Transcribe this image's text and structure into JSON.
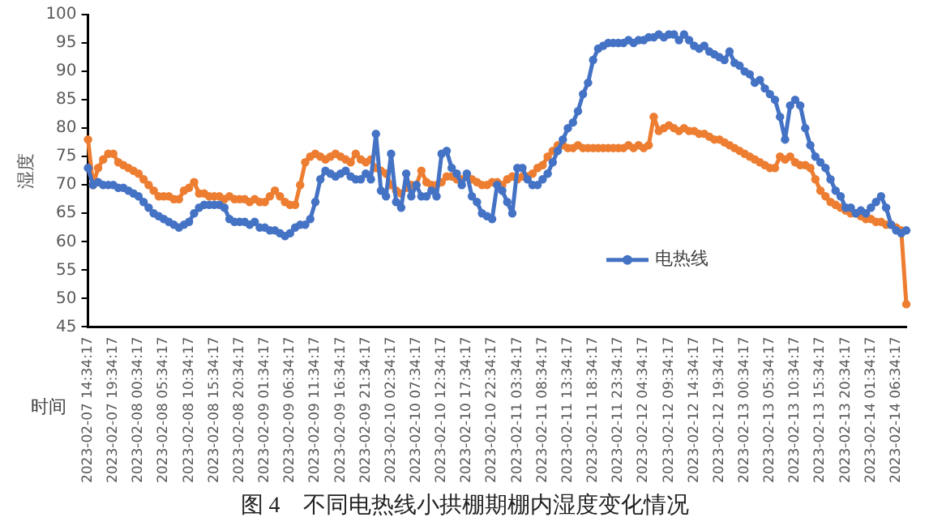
{
  "chart_data": {
    "type": "line",
    "title": "图 4　不同电热线小拱棚期棚内湿度变化情况",
    "xlabel": "时间",
    "ylabel": "湿度",
    "categories": [
      "2023-02-07 14:34:17",
      null,
      null,
      null,
      null,
      "2023-02-07 19:34:17",
      null,
      null,
      null,
      null,
      "2023-02-08 00:34:17",
      null,
      null,
      null,
      null,
      "2023-02-08 05:34:17",
      null,
      null,
      null,
      null,
      "2023-02-08 10:34:17",
      null,
      null,
      null,
      null,
      "2023-02-08 15:34:17",
      null,
      null,
      null,
      null,
      "2023-02-08 20:34:17",
      null,
      null,
      null,
      null,
      "2023-02-09 01:34:17",
      null,
      null,
      null,
      null,
      "2023-02-09 06:34:17",
      null,
      null,
      null,
      null,
      "2023-02-09 11:34:17",
      null,
      null,
      null,
      null,
      "2023-02-09 16:34:17",
      null,
      null,
      null,
      null,
      "2023-02-09 21:34:17",
      null,
      null,
      null,
      null,
      "2023-02-10 02:34:17",
      null,
      null,
      null,
      null,
      "2023-02-10 07:34:17",
      null,
      null,
      null,
      null,
      "2023-02-10 12:34:17",
      null,
      null,
      null,
      null,
      "2023-02-10 17:34:17",
      null,
      null,
      null,
      null,
      "2023-02-10 22:34:17",
      null,
      null,
      null,
      null,
      "2023-02-11 03:34:17",
      null,
      null,
      null,
      null,
      "2023-02-11 08:34:17",
      null,
      null,
      null,
      null,
      "2023-02-11 13:34:17",
      null,
      null,
      null,
      null,
      "2023-02-11 18:34:17",
      null,
      null,
      null,
      null,
      "2023-02-11 23:34:17",
      null,
      null,
      null,
      null,
      "2023-02-12 04:34:17",
      null,
      null,
      null,
      null,
      "2023-02-12 09:34:17",
      null,
      null,
      null,
      null,
      "2023-02-12 14:34:17",
      null,
      null,
      null,
      null,
      "2023-02-12 19:34:17",
      null,
      null,
      null,
      null,
      "2023-02-13 00:34:17",
      null,
      null,
      null,
      null,
      "2023-02-13 05:34:17",
      null,
      null,
      null,
      null,
      "2023-02-13 10:34:17",
      null,
      null,
      null,
      null,
      "2023-02-13 15:34:17",
      null,
      null,
      null,
      null,
      "2023-02-13 20:34:17",
      null,
      null,
      null,
      null,
      "2023-02-14 01:34:17",
      null,
      null,
      null,
      null,
      "2023-02-14 06:34:17",
      null,
      null
    ],
    "series": [
      {
        "name": "电热线",
        "color": "#4472c4",
        "values": [
          73,
          70,
          70.5,
          70,
          70,
          70,
          69.5,
          69.5,
          69,
          68.5,
          68,
          67,
          66,
          65,
          64.5,
          64,
          63.5,
          63,
          62.5,
          63,
          63.5,
          65,
          66,
          66.5,
          66.5,
          66.5,
          66.5,
          66,
          64,
          63.5,
          63.5,
          63.5,
          63,
          63.5,
          62.5,
          62.5,
          62,
          62,
          61.5,
          61,
          61.5,
          62.5,
          63,
          63,
          64,
          67,
          71,
          72.5,
          72,
          71.5,
          72,
          72.5,
          71.5,
          71,
          71,
          72,
          71,
          79,
          69,
          68,
          75.5,
          67,
          66,
          72,
          68,
          70,
          68,
          68,
          69,
          68,
          75.5,
          76,
          73,
          72,
          70,
          72,
          68,
          67,
          65,
          64.5,
          64,
          70,
          69,
          67,
          65,
          73,
          73,
          71,
          70,
          70,
          71,
          72,
          74,
          76,
          78,
          80,
          81,
          83,
          86,
          88,
          92,
          94,
          94.5,
          95,
          95,
          95,
          95,
          95.5,
          95,
          95.5,
          95.5,
          96,
          96,
          96.5,
          96,
          96.5,
          96.5,
          95.5,
          96.5,
          95.5,
          94.5,
          94,
          94.5,
          93.5,
          93,
          92.5,
          92,
          93.5,
          91.5,
          91,
          90,
          89.5,
          88,
          88.5,
          87,
          86,
          85,
          82,
          78,
          84,
          85,
          84,
          80,
          77,
          75,
          74,
          73,
          71,
          69,
          68,
          66,
          66,
          65,
          65.5,
          65,
          66,
          67,
          68,
          66,
          63,
          62,
          61.5,
          62
        ]
      },
      {
        "color": "#ed7d31",
        "values": [
          78,
          70,
          73,
          74.5,
          75.5,
          75.5,
          74,
          73.5,
          73,
          72.5,
          72,
          71,
          70,
          69,
          68,
          68,
          68,
          67.5,
          67.5,
          69,
          69.5,
          70.5,
          68.5,
          68.5,
          68,
          68,
          68,
          67.5,
          68,
          67.5,
          67.5,
          67.5,
          67,
          67.5,
          67,
          67,
          68,
          69,
          68,
          67,
          66.5,
          66.5,
          70,
          74,
          75,
          75.5,
          75,
          74.5,
          75,
          75.5,
          75,
          74.5,
          74,
          75.5,
          74.5,
          74,
          74.5,
          73,
          72.5,
          72,
          70,
          69,
          68.5,
          69.5,
          70,
          70,
          72.5,
          70.5,
          70,
          70,
          70.5,
          71.5,
          71.5,
          71,
          71,
          71.5,
          71,
          70.5,
          70,
          70,
          70.5,
          70.5,
          70,
          71,
          71.5,
          71,
          71.5,
          71.5,
          72,
          73,
          73.5,
          75,
          76,
          77,
          77,
          76.5,
          76.5,
          77,
          76.5,
          76.5,
          76.5,
          76.5,
          76.5,
          76.5,
          76.5,
          76.5,
          76.5,
          77,
          76.5,
          77,
          76.5,
          77,
          82,
          79.5,
          80,
          80.5,
          80,
          79.5,
          80,
          79.5,
          79.5,
          79,
          79,
          78.5,
          78,
          78,
          77.5,
          77,
          76.5,
          76,
          75.5,
          75,
          74.5,
          74,
          73.5,
          73,
          73,
          75,
          74.5,
          75,
          74,
          73.5,
          73.5,
          73,
          71,
          69,
          68,
          67,
          66.5,
          66,
          65.5,
          65,
          65,
          64.5,
          64,
          64,
          63.5,
          63.5,
          63,
          63,
          62.5,
          62,
          49
        ]
      }
    ],
    "ylim": [
      45,
      100
    ],
    "yticks": [
      45,
      50,
      55,
      60,
      65,
      70,
      75,
      80,
      85,
      90,
      95,
      100
    ],
    "grid": false,
    "legend": "right",
    "marker": "circle",
    "line_style": "solid"
  }
}
